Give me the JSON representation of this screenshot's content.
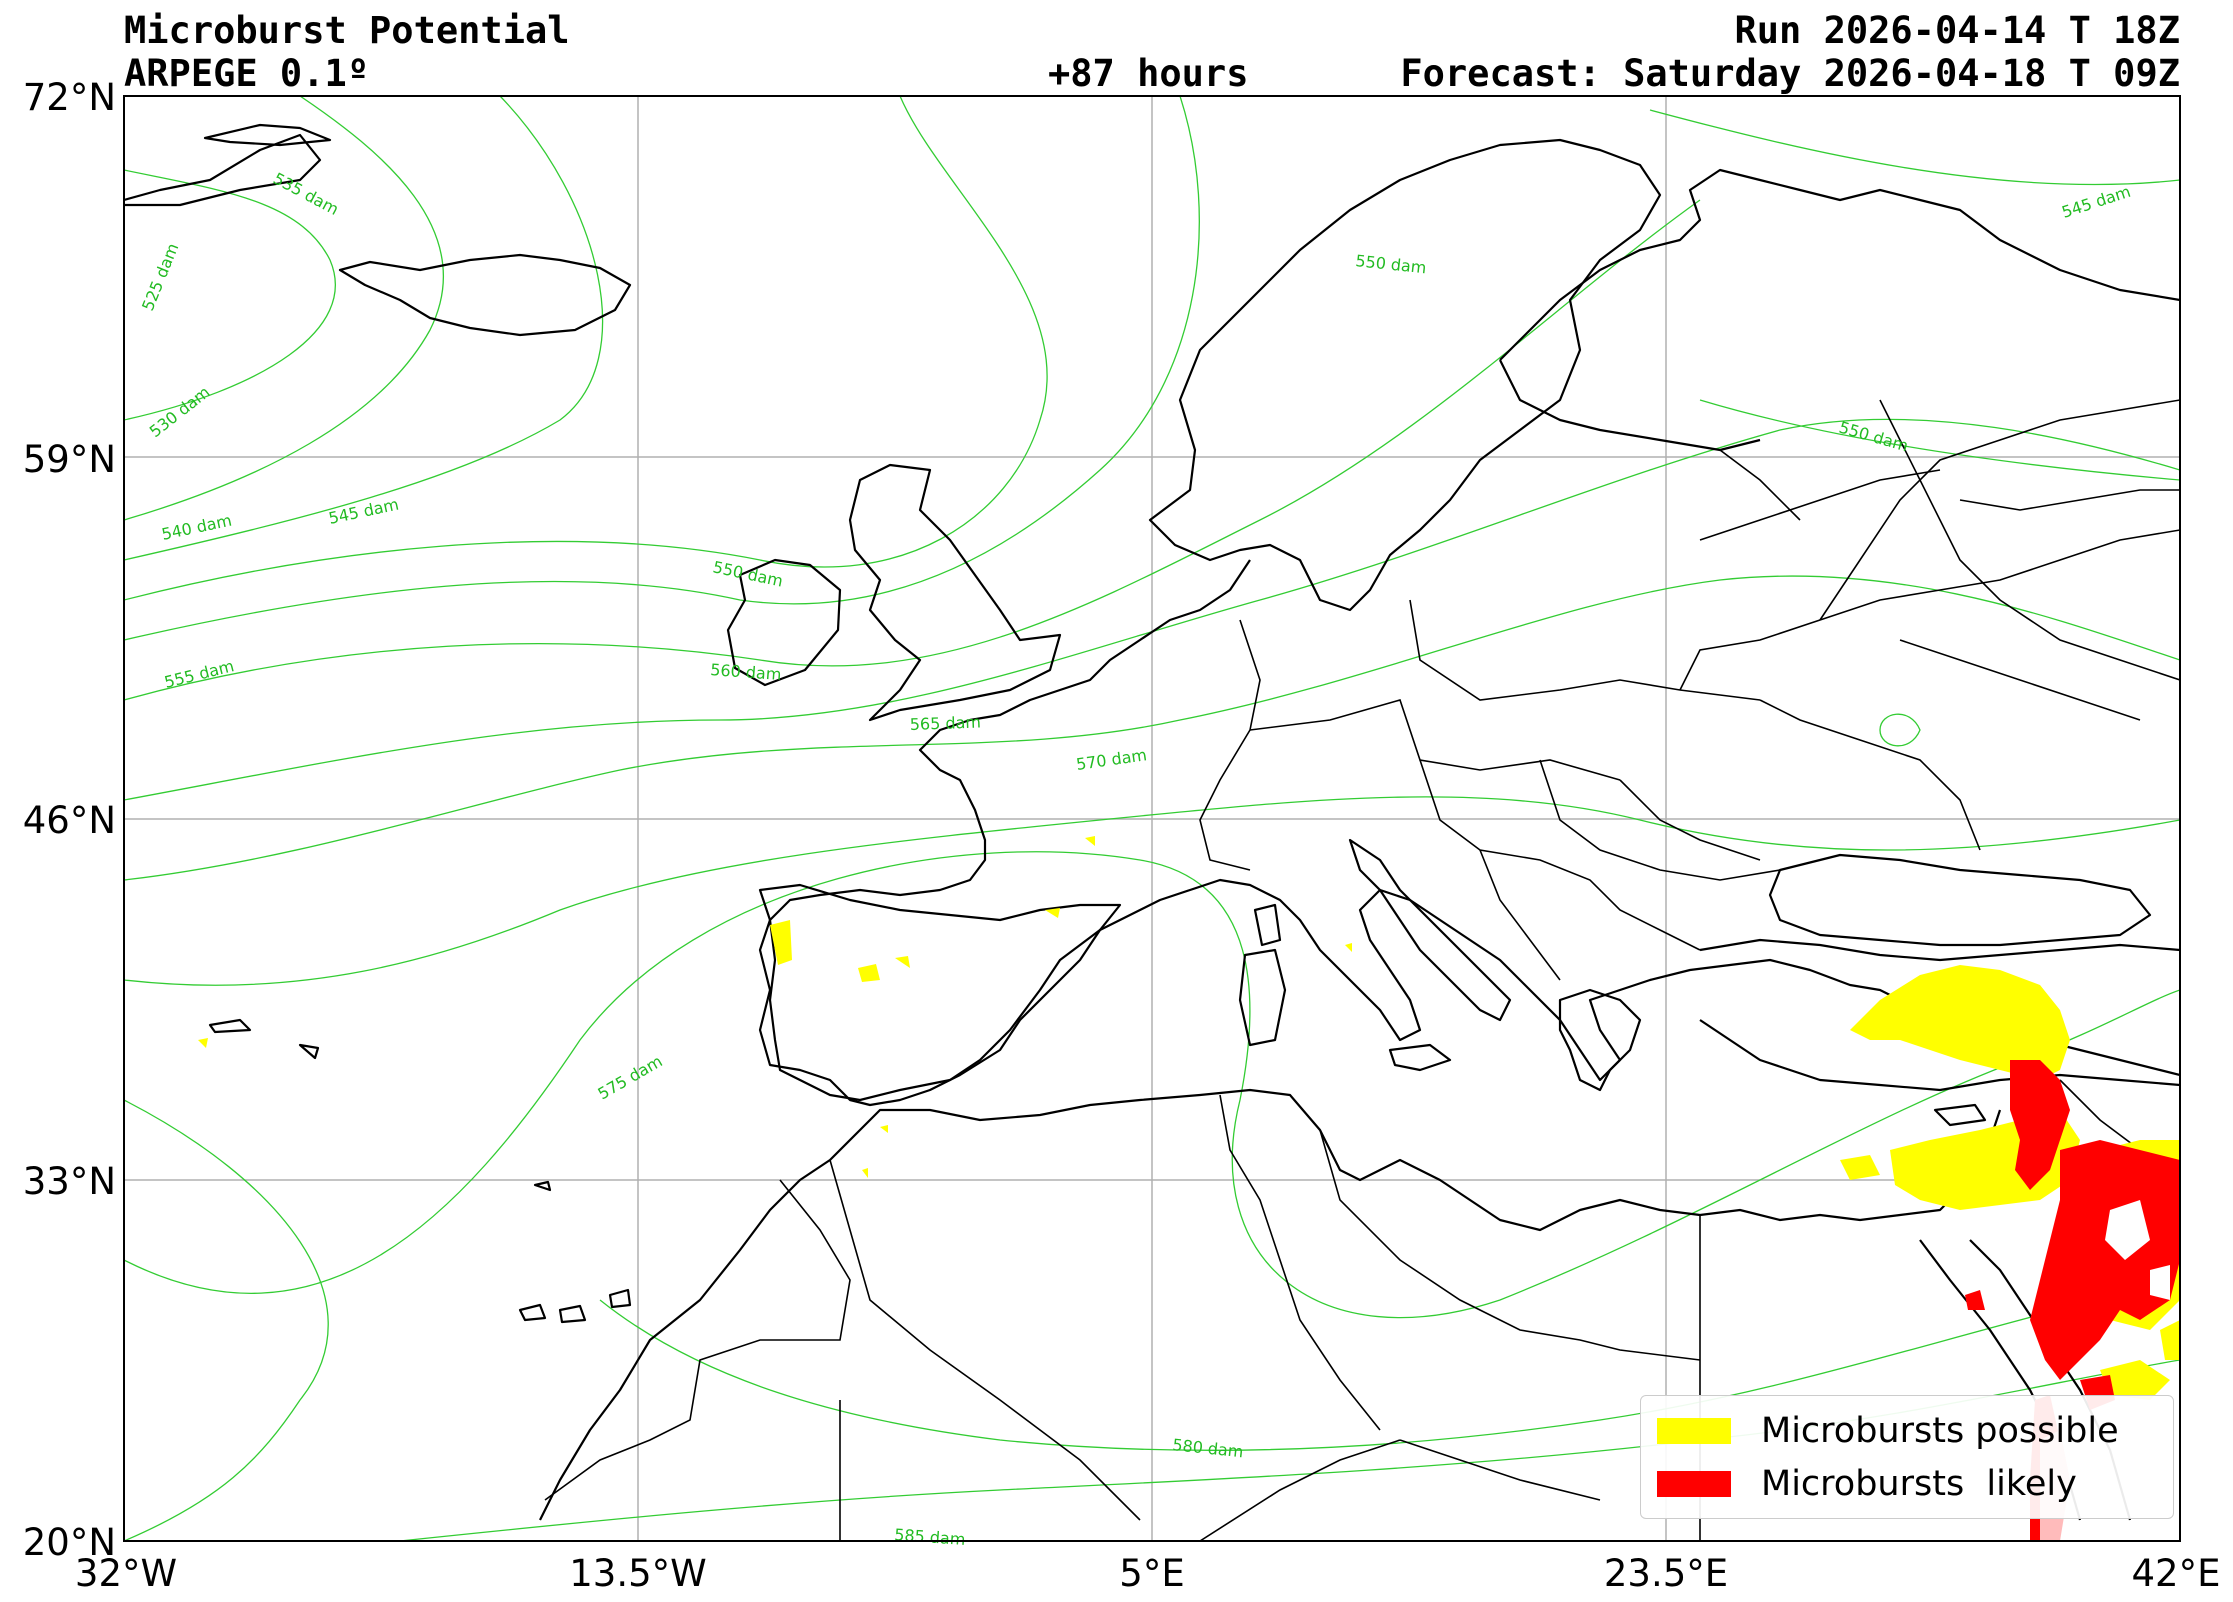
{
  "header": {
    "title": "Microburst Potential",
    "model": "ARPEGE 0.1º",
    "run": "Run 2026-04-14 T 18Z",
    "lead": "+87 hours",
    "forecast": "Forecast: Saturday 2026-04-18 T 09Z"
  },
  "axes": {
    "lat_ticks": [
      "72°N",
      "59°N",
      "46°N",
      "33°N",
      "20°N"
    ],
    "lon_ticks": [
      "32°W",
      "13.5°W",
      "5°E",
      "23.5°E",
      "42°E"
    ],
    "lat_range": [
      20,
      72
    ],
    "lon_range": [
      -32,
      42
    ],
    "grid": true
  },
  "contours": {
    "color": "#22bb22",
    "labels": [
      "535 dam",
      "525 dam",
      "530 dam",
      "540 dam",
      "545 dam",
      "550 dam",
      "555 dam",
      "560 dam",
      "565 dam",
      "570 dam",
      "575 dam",
      "580 dam",
      "585 dam",
      "550 dam",
      "545 dam",
      "550 dam"
    ]
  },
  "legend": {
    "position": "lower-right",
    "items": [
      {
        "label": "Microbursts possible",
        "color": "#ffff00"
      },
      {
        "label": "Microbursts  likely",
        "color": "#ff0000"
      }
    ]
  }
}
